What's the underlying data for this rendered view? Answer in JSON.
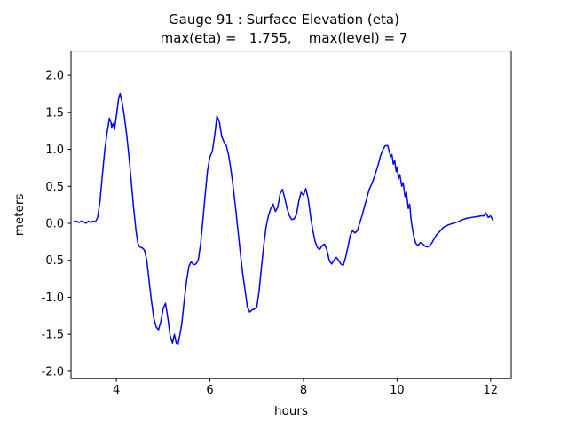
{
  "chart_data": {
    "type": "line",
    "title": "Gauge 91 : Surface Elevation (eta)",
    "subtitle": "max(eta) =   1.755,    max(level) = 7",
    "xlabel": "hours",
    "ylabel": "meters",
    "xlim": [
      3.03,
      12.44
    ],
    "ylim": [
      -2.1,
      2.33
    ],
    "xticks": [
      4,
      6,
      8,
      10,
      12
    ],
    "yticks": [
      -2.0,
      -1.5,
      -1.0,
      -0.5,
      0.0,
      0.5,
      1.0,
      1.5,
      2.0
    ],
    "grid": false,
    "legend": "none",
    "line_color": "#0000ff",
    "max_eta": 1.755,
    "max_level": 7,
    "gauge_number": 91,
    "series": [
      {
        "name": "eta",
        "points": [
          [
            3.08,
            0.02
          ],
          [
            3.15,
            0.03
          ],
          [
            3.2,
            0.01
          ],
          [
            3.25,
            0.03
          ],
          [
            3.3,
            0.02
          ],
          [
            3.35,
            0.0
          ],
          [
            3.4,
            0.03
          ],
          [
            3.45,
            0.01
          ],
          [
            3.5,
            0.03
          ],
          [
            3.55,
            0.02
          ],
          [
            3.6,
            0.08
          ],
          [
            3.65,
            0.3
          ],
          [
            3.7,
            0.65
          ],
          [
            3.75,
            0.98
          ],
          [
            3.8,
            1.22
          ],
          [
            3.85,
            1.42
          ],
          [
            3.88,
            1.38
          ],
          [
            3.9,
            1.3
          ],
          [
            3.93,
            1.35
          ],
          [
            3.96,
            1.27
          ],
          [
            4.0,
            1.45
          ],
          [
            4.05,
            1.7
          ],
          [
            4.08,
            1.755
          ],
          [
            4.12,
            1.65
          ],
          [
            4.17,
            1.45
          ],
          [
            4.22,
            1.2
          ],
          [
            4.27,
            0.9
          ],
          [
            4.32,
            0.55
          ],
          [
            4.37,
            0.2
          ],
          [
            4.42,
            -0.1
          ],
          [
            4.46,
            -0.27
          ],
          [
            4.5,
            -0.32
          ],
          [
            4.55,
            -0.33
          ],
          [
            4.6,
            -0.36
          ],
          [
            4.65,
            -0.5
          ],
          [
            4.7,
            -0.78
          ],
          [
            4.75,
            -1.05
          ],
          [
            4.8,
            -1.28
          ],
          [
            4.85,
            -1.4
          ],
          [
            4.9,
            -1.44
          ],
          [
            4.95,
            -1.33
          ],
          [
            5.0,
            -1.15
          ],
          [
            5.05,
            -1.08
          ],
          [
            5.1,
            -1.28
          ],
          [
            5.15,
            -1.52
          ],
          [
            5.2,
            -1.62
          ],
          [
            5.24,
            -1.5
          ],
          [
            5.28,
            -1.62
          ],
          [
            5.32,
            -1.63
          ],
          [
            5.36,
            -1.5
          ],
          [
            5.4,
            -1.35
          ],
          [
            5.45,
            -1.05
          ],
          [
            5.5,
            -0.78
          ],
          [
            5.55,
            -0.58
          ],
          [
            5.6,
            -0.52
          ],
          [
            5.65,
            -0.56
          ],
          [
            5.7,
            -0.55
          ],
          [
            5.75,
            -0.5
          ],
          [
            5.8,
            -0.28
          ],
          [
            5.85,
            0.05
          ],
          [
            5.9,
            0.4
          ],
          [
            5.95,
            0.72
          ],
          [
            6.0,
            0.9
          ],
          [
            6.05,
            0.97
          ],
          [
            6.1,
            1.18
          ],
          [
            6.15,
            1.45
          ],
          [
            6.2,
            1.38
          ],
          [
            6.25,
            1.18
          ],
          [
            6.3,
            1.1
          ],
          [
            6.35,
            1.05
          ],
          [
            6.4,
            0.92
          ],
          [
            6.45,
            0.72
          ],
          [
            6.5,
            0.48
          ],
          [
            6.55,
            0.2
          ],
          [
            6.6,
            -0.1
          ],
          [
            6.65,
            -0.4
          ],
          [
            6.7,
            -0.68
          ],
          [
            6.75,
            -0.9
          ],
          [
            6.8,
            -1.13
          ],
          [
            6.85,
            -1.2
          ],
          [
            6.9,
            -1.17
          ],
          [
            6.95,
            -1.16
          ],
          [
            7.0,
            -1.14
          ],
          [
            7.05,
            -0.92
          ],
          [
            7.1,
            -0.6
          ],
          [
            7.15,
            -0.3
          ],
          [
            7.2,
            -0.05
          ],
          [
            7.25,
            0.1
          ],
          [
            7.3,
            0.2
          ],
          [
            7.35,
            0.26
          ],
          [
            7.4,
            0.16
          ],
          [
            7.45,
            0.22
          ],
          [
            7.5,
            0.4
          ],
          [
            7.55,
            0.46
          ],
          [
            7.6,
            0.34
          ],
          [
            7.65,
            0.2
          ],
          [
            7.7,
            0.1
          ],
          [
            7.75,
            0.05
          ],
          [
            7.8,
            0.06
          ],
          [
            7.85,
            0.12
          ],
          [
            7.9,
            0.3
          ],
          [
            7.95,
            0.42
          ],
          [
            8.0,
            0.38
          ],
          [
            8.05,
            0.47
          ],
          [
            8.1,
            0.34
          ],
          [
            8.15,
            0.1
          ],
          [
            8.2,
            -0.1
          ],
          [
            8.25,
            -0.25
          ],
          [
            8.3,
            -0.33
          ],
          [
            8.35,
            -0.35
          ],
          [
            8.4,
            -0.3
          ],
          [
            8.45,
            -0.28
          ],
          [
            8.5,
            -0.36
          ],
          [
            8.55,
            -0.5
          ],
          [
            8.6,
            -0.55
          ],
          [
            8.65,
            -0.5
          ],
          [
            8.7,
            -0.46
          ],
          [
            8.75,
            -0.5
          ],
          [
            8.8,
            -0.55
          ],
          [
            8.85,
            -0.57
          ],
          [
            8.9,
            -0.46
          ],
          [
            8.95,
            -0.32
          ],
          [
            9.0,
            -0.16
          ],
          [
            9.05,
            -0.1
          ],
          [
            9.1,
            -0.13
          ],
          [
            9.15,
            -0.1
          ],
          [
            9.2,
            0.0
          ],
          [
            9.25,
            0.1
          ],
          [
            9.3,
            0.22
          ],
          [
            9.35,
            0.33
          ],
          [
            9.4,
            0.45
          ],
          [
            9.45,
            0.52
          ],
          [
            9.5,
            0.6
          ],
          [
            9.55,
            0.7
          ],
          [
            9.6,
            0.8
          ],
          [
            9.65,
            0.92
          ],
          [
            9.7,
            1.0
          ],
          [
            9.75,
            1.05
          ],
          [
            9.8,
            1.05
          ],
          [
            9.83,
            0.98
          ],
          [
            9.86,
            0.9
          ],
          [
            9.89,
            0.93
          ],
          [
            9.92,
            0.8
          ],
          [
            9.95,
            0.85
          ],
          [
            9.98,
            0.7
          ],
          [
            10.0,
            0.76
          ],
          [
            10.03,
            0.6
          ],
          [
            10.06,
            0.66
          ],
          [
            10.1,
            0.5
          ],
          [
            10.13,
            0.55
          ],
          [
            10.17,
            0.36
          ],
          [
            10.2,
            0.42
          ],
          [
            10.24,
            0.2
          ],
          [
            10.27,
            0.26
          ],
          [
            10.3,
            0.05
          ],
          [
            10.33,
            -0.08
          ],
          [
            10.36,
            -0.18
          ],
          [
            10.4,
            -0.27
          ],
          [
            10.45,
            -0.3
          ],
          [
            10.5,
            -0.26
          ],
          [
            10.55,
            -0.28
          ],
          [
            10.6,
            -0.31
          ],
          [
            10.65,
            -0.32
          ],
          [
            10.7,
            -0.3
          ],
          [
            10.75,
            -0.26
          ],
          [
            10.8,
            -0.2
          ],
          [
            10.85,
            -0.15
          ],
          [
            10.9,
            -0.12
          ],
          [
            10.95,
            -0.08
          ],
          [
            11.0,
            -0.05
          ],
          [
            11.1,
            -0.02
          ],
          [
            11.2,
            0.0
          ],
          [
            11.3,
            0.02
          ],
          [
            11.4,
            0.05
          ],
          [
            11.5,
            0.07
          ],
          [
            11.6,
            0.08
          ],
          [
            11.7,
            0.09
          ],
          [
            11.8,
            0.1
          ],
          [
            11.85,
            0.1
          ],
          [
            11.9,
            0.14
          ],
          [
            11.95,
            0.08
          ],
          [
            12.0,
            0.1
          ],
          [
            12.05,
            0.04
          ]
        ]
      }
    ]
  }
}
